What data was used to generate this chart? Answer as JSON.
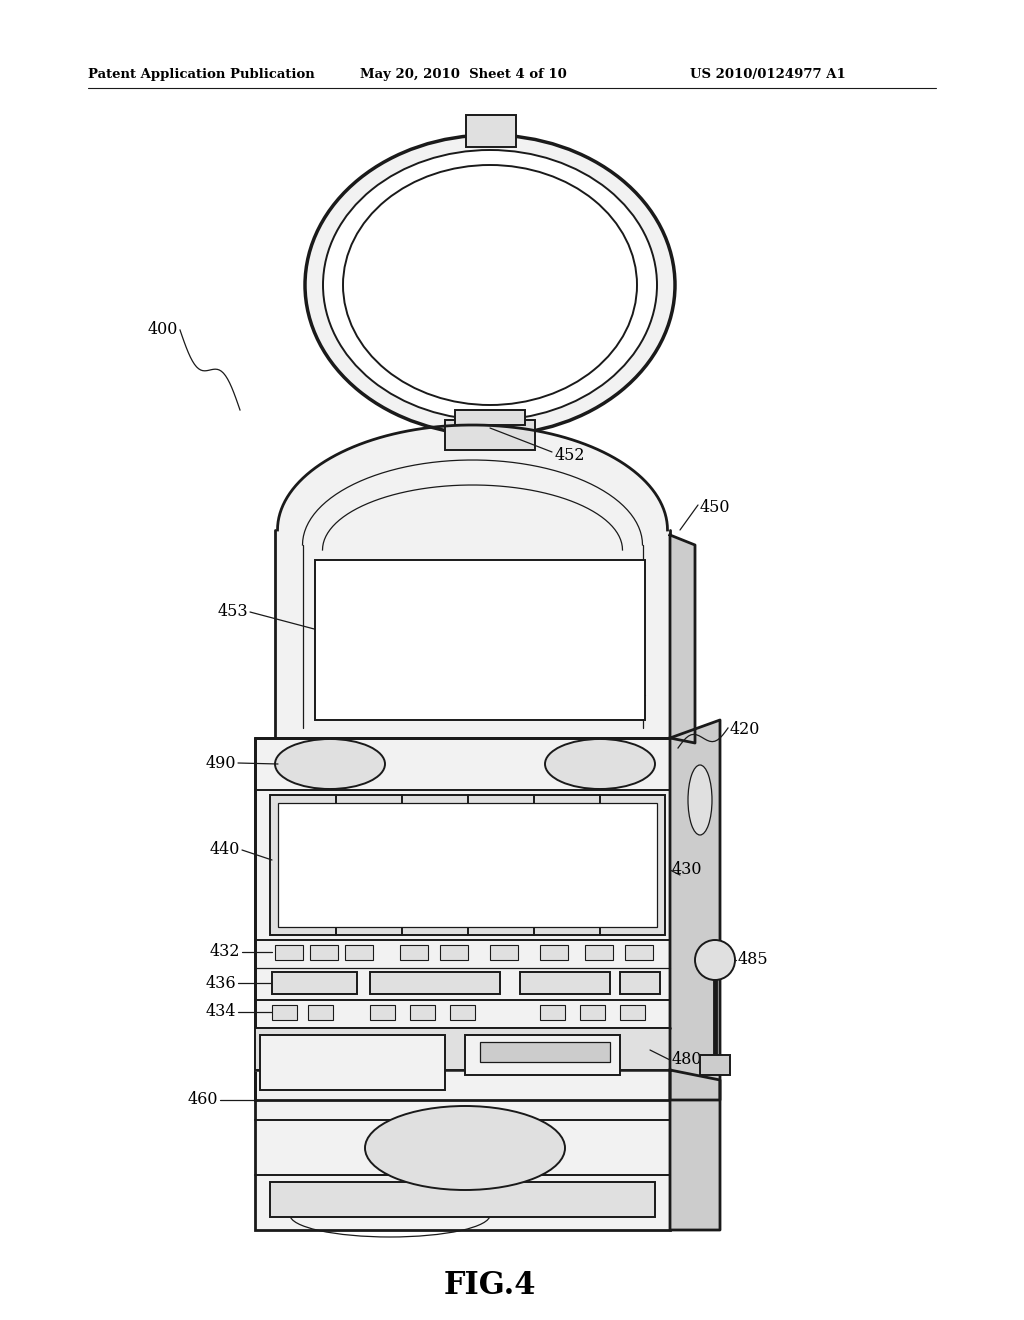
{
  "bg_color": "#ffffff",
  "header_left": "Patent Application Publication",
  "header_mid": "May 20, 2010  Sheet 4 of 10",
  "header_right": "US 2010/0124977 A1",
  "figure_label": "FIG.4",
  "line_color": "#1a1a1a",
  "fill_light": "#f2f2f2",
  "fill_mid": "#e0e0e0",
  "fill_dark": "#cccccc",
  "lw_thick": 2.0,
  "lw_main": 1.4,
  "lw_thin": 0.9
}
